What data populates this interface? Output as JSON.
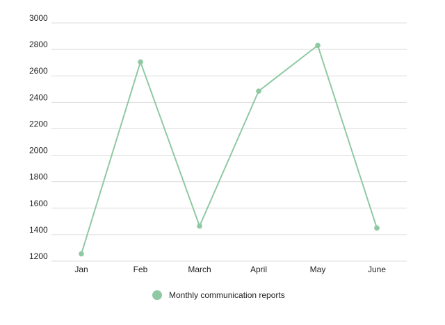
{
  "chart_data": {
    "type": "line",
    "categories": [
      "Jan",
      "Feb",
      "March",
      "April",
      "May",
      "June"
    ],
    "series": [
      {
        "name": "Monthly communication reports",
        "values": [
          1255,
          2705,
          1465,
          2485,
          2830,
          1450
        ]
      }
    ],
    "yticks": [
      1200,
      1400,
      1600,
      1800,
      2000,
      2200,
      2400,
      2600,
      2800,
      3000
    ],
    "ylim": [
      1200,
      3000
    ],
    "grid": true,
    "legend": "bottom-center",
    "colors": {
      "series": "#8fc9a3",
      "grid": "#dcdcdc",
      "text": "#222222"
    }
  }
}
